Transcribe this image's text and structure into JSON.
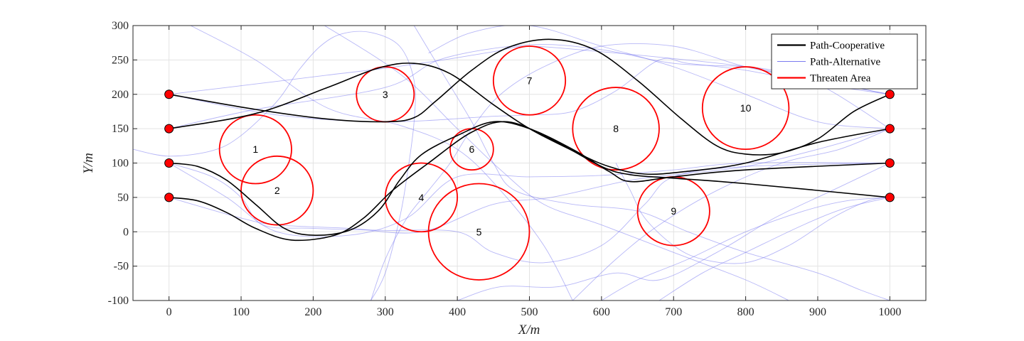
{
  "chart_data": {
    "type": "line",
    "title": "",
    "xlabel": "X/m",
    "ylabel": "Y/m",
    "xlim": [
      -50,
      1050
    ],
    "ylim": [
      -100,
      300
    ],
    "xticks": [
      0,
      100,
      200,
      300,
      400,
      500,
      600,
      700,
      800,
      900,
      1000
    ],
    "yticks": [
      -100,
      -50,
      0,
      50,
      100,
      150,
      200,
      250,
      300
    ],
    "grid": true,
    "legend": {
      "position": "top-right",
      "entries": [
        {
          "label": "Path-Cooperative",
          "color": "#000000"
        },
        {
          "label": "Path-Alternative",
          "color": "#7b7bf0"
        },
        {
          "label": "Threaten Area",
          "color": "#ff0000"
        }
      ]
    },
    "start_points": [
      [
        0,
        200
      ],
      [
        0,
        150
      ],
      [
        0,
        100
      ],
      [
        0,
        50
      ]
    ],
    "end_points": [
      [
        1000,
        200
      ],
      [
        1000,
        150
      ],
      [
        1000,
        100
      ],
      [
        1000,
        50
      ]
    ],
    "threat_areas": [
      {
        "label": "1",
        "cx": 120,
        "cy": 120,
        "r": 50
      },
      {
        "label": "2",
        "cx": 150,
        "cy": 60,
        "r": 50
      },
      {
        "label": "3",
        "cx": 300,
        "cy": 200,
        "r": 40
      },
      {
        "label": "4",
        "cx": 350,
        "cy": 50,
        "r": 50
      },
      {
        "label": "5",
        "cx": 430,
        "cy": 0,
        "r": 70
      },
      {
        "label": "6",
        "cx": 420,
        "cy": 120,
        "r": 30
      },
      {
        "label": "7",
        "cx": 500,
        "cy": 220,
        "r": 50
      },
      {
        "label": "8",
        "cx": 620,
        "cy": 150,
        "r": 60
      },
      {
        "label": "9",
        "cx": 700,
        "cy": 30,
        "r": 50
      },
      {
        "label": "10",
        "cx": 800,
        "cy": 180,
        "r": 60
      }
    ],
    "series": [
      {
        "name": "Path-Cooperative",
        "color": "#000000",
        "paths": [
          [
            [
              0,
              200
            ],
            [
              120,
              178
            ],
            [
              220,
              164
            ],
            [
              300,
              160
            ],
            [
              340,
              166
            ],
            [
              370,
              190
            ],
            [
              420,
              235
            ],
            [
              470,
              268
            ],
            [
              530,
              280
            ],
            [
              590,
              265
            ],
            [
              650,
              220
            ],
            [
              710,
              165
            ],
            [
              760,
              125
            ],
            [
              800,
              113
            ],
            [
              850,
              115
            ],
            [
              900,
              135
            ],
            [
              950,
              175
            ],
            [
              1000,
              200
            ]
          ],
          [
            [
              0,
              150
            ],
            [
              120,
              172
            ],
            [
              220,
              210
            ],
            [
              290,
              238
            ],
            [
              340,
              245
            ],
            [
              390,
              230
            ],
            [
              450,
              185
            ],
            [
              500,
              150
            ],
            [
              560,
              118
            ],
            [
              610,
              95
            ],
            [
              660,
              84
            ],
            [
              720,
              88
            ],
            [
              800,
              100
            ],
            [
              900,
              130
            ],
            [
              1000,
              150
            ]
          ],
          [
            [
              0,
              100
            ],
            [
              40,
              95
            ],
            [
              80,
              75
            ],
            [
              120,
              40
            ],
            [
              160,
              5
            ],
            [
              200,
              -5
            ],
            [
              250,
              2
            ],
            [
              290,
              30
            ],
            [
              320,
              75
            ],
            [
              350,
              112
            ],
            [
              400,
              140
            ],
            [
              450,
              160
            ],
            [
              500,
              150
            ],
            [
              560,
              120
            ],
            [
              610,
              88
            ],
            [
              640,
              73
            ],
            [
              700,
              80
            ],
            [
              800,
              90
            ],
            [
              1000,
              100
            ]
          ],
          [
            [
              0,
              50
            ],
            [
              40,
              45
            ],
            [
              80,
              28
            ],
            [
              120,
              5
            ],
            [
              170,
              -12
            ],
            [
              230,
              -5
            ],
            [
              270,
              20
            ],
            [
              310,
              60
            ],
            [
              360,
              100
            ],
            [
              420,
              145
            ],
            [
              470,
              160
            ],
            [
              530,
              135
            ],
            [
              600,
              95
            ],
            [
              640,
              83
            ],
            [
              700,
              78
            ],
            [
              800,
              70
            ],
            [
              1000,
              50
            ]
          ]
        ]
      },
      {
        "name": "Path-Alternative",
        "color": "#7b7bf0",
        "paths": [
          [
            [
              0,
              200
            ],
            [
              120,
              215
            ],
            [
              220,
              228
            ],
            [
              300,
              238
            ],
            [
              380,
              250
            ],
            [
              450,
              262
            ],
            [
              500,
              270
            ],
            [
              600,
              262
            ],
            [
              700,
              252
            ],
            [
              800,
              240
            ],
            [
              900,
              220
            ],
            [
              1000,
              200
            ]
          ],
          [
            [
              0,
              200
            ],
            [
              150,
              170
            ],
            [
              300,
              160
            ],
            [
              450,
              168
            ],
            [
              500,
              170
            ],
            [
              560,
              175
            ],
            [
              620,
              205
            ],
            [
              680,
              250
            ],
            [
              720,
              245
            ],
            [
              800,
              235
            ],
            [
              900,
              215
            ],
            [
              1000,
              200
            ]
          ],
          [
            [
              0,
              150
            ],
            [
              120,
              178
            ],
            [
              300,
              210
            ],
            [
              380,
              252
            ],
            [
              500,
              272
            ],
            [
              600,
              265
            ],
            [
              700,
              245
            ],
            [
              820,
              238
            ],
            [
              900,
              215
            ],
            [
              1000,
              150
            ]
          ],
          [
            [
              0,
              100
            ],
            [
              60,
              80
            ],
            [
              100,
              50
            ],
            [
              130,
              10
            ],
            [
              200,
              5
            ],
            [
              300,
              2
            ],
            [
              400,
              0
            ],
            [
              450,
              -30
            ],
            [
              520,
              -45
            ],
            [
              600,
              -20
            ],
            [
              660,
              40
            ],
            [
              700,
              80
            ],
            [
              800,
              95
            ],
            [
              1000,
              100
            ]
          ],
          [
            [
              0,
              50
            ],
            [
              100,
              20
            ],
            [
              150,
              10
            ],
            [
              250,
              5
            ],
            [
              350,
              0
            ],
            [
              450,
              40
            ],
            [
              530,
              50
            ],
            [
              640,
              75
            ],
            [
              720,
              85
            ],
            [
              800,
              95
            ],
            [
              900,
              120
            ],
            [
              1000,
              150
            ]
          ],
          [
            [
              0,
              100
            ],
            [
              80,
              50
            ],
            [
              150,
              0
            ],
            [
              250,
              -5
            ],
            [
              330,
              20
            ],
            [
              400,
              80
            ],
            [
              500,
              80
            ],
            [
              600,
              82
            ],
            [
              700,
              90
            ],
            [
              800,
              100
            ],
            [
              1000,
              100
            ]
          ],
          [
            [
              -50,
              120
            ],
            [
              0,
              110
            ],
            [
              60,
              118
            ],
            [
              100,
              140
            ],
            [
              150,
              190
            ],
            [
              180,
              235
            ],
            [
              210,
              270
            ],
            [
              240,
              288
            ],
            [
              280,
              290
            ],
            [
              320,
              270
            ],
            [
              340,
              220
            ],
            [
              340,
              160
            ],
            [
              330,
              80
            ],
            [
              320,
              20
            ],
            [
              300,
              -60
            ],
            [
              280,
              -100
            ]
          ],
          [
            [
              30,
              300
            ],
            [
              120,
              250
            ],
            [
              220,
              180
            ],
            [
              320,
              155
            ],
            [
              400,
              120
            ],
            [
              460,
              60
            ],
            [
              520,
              -20
            ],
            [
              560,
              -100
            ]
          ],
          [
            [
              200,
              310
            ],
            [
              320,
              230
            ],
            [
              400,
              150
            ],
            [
              460,
              90
            ],
            [
              520,
              40
            ],
            [
              600,
              10
            ],
            [
              700,
              -30
            ],
            [
              800,
              -70
            ],
            [
              860,
              -100
            ]
          ],
          [
            [
              340,
              300
            ],
            [
              380,
              230
            ],
            [
              420,
              160
            ],
            [
              450,
              100
            ],
            [
              480,
              60
            ],
            [
              560,
              40
            ],
            [
              650,
              30
            ],
            [
              720,
              0
            ],
            [
              800,
              -30
            ],
            [
              900,
              -60
            ],
            [
              960,
              -85
            ],
            [
              1000,
              -100
            ]
          ],
          [
            [
              360,
              260
            ],
            [
              420,
              290
            ],
            [
              500,
              300
            ],
            [
              600,
              270
            ],
            [
              700,
              240
            ],
            [
              800,
              200
            ],
            [
              900,
              160
            ],
            [
              1000,
              150
            ]
          ],
          [
            [
              400,
              -100
            ],
            [
              460,
              -80
            ],
            [
              540,
              -80
            ],
            [
              620,
              -60
            ],
            [
              680,
              -70
            ],
            [
              760,
              -30
            ],
            [
              840,
              20
            ],
            [
              920,
              60
            ],
            [
              1000,
              100
            ]
          ],
          [
            [
              560,
              -100
            ],
            [
              620,
              -40
            ],
            [
              680,
              10
            ],
            [
              760,
              60
            ],
            [
              850,
              100
            ],
            [
              930,
              120
            ],
            [
              1000,
              150
            ]
          ],
          [
            [
              600,
              -100
            ],
            [
              650,
              -70
            ],
            [
              720,
              -40
            ],
            [
              800,
              0
            ],
            [
              880,
              30
            ],
            [
              940,
              45
            ],
            [
              1000,
              50
            ]
          ],
          [
            [
              680,
              -100
            ],
            [
              740,
              -60
            ],
            [
              800,
              -30
            ],
            [
              880,
              10
            ],
            [
              940,
              35
            ],
            [
              1000,
              50
            ]
          ],
          [
            [
              620,
              100
            ],
            [
              640,
              60
            ],
            [
              660,
              20
            ],
            [
              700,
              -20
            ],
            [
              740,
              -40
            ],
            [
              800,
              -45
            ],
            [
              860,
              -20
            ],
            [
              920,
              20
            ],
            [
              970,
              45
            ],
            [
              1000,
              50
            ]
          ],
          [
            [
              280,
              -100
            ],
            [
              300,
              -40
            ],
            [
              330,
              20
            ],
            [
              360,
              60
            ],
            [
              390,
              100
            ],
            [
              420,
              150
            ],
            [
              460,
              200
            ],
            [
              520,
              240
            ],
            [
              600,
              270
            ],
            [
              700,
              270
            ],
            [
              800,
              240
            ],
            [
              900,
              220
            ],
            [
              1000,
              200
            ]
          ]
        ]
      }
    ]
  }
}
